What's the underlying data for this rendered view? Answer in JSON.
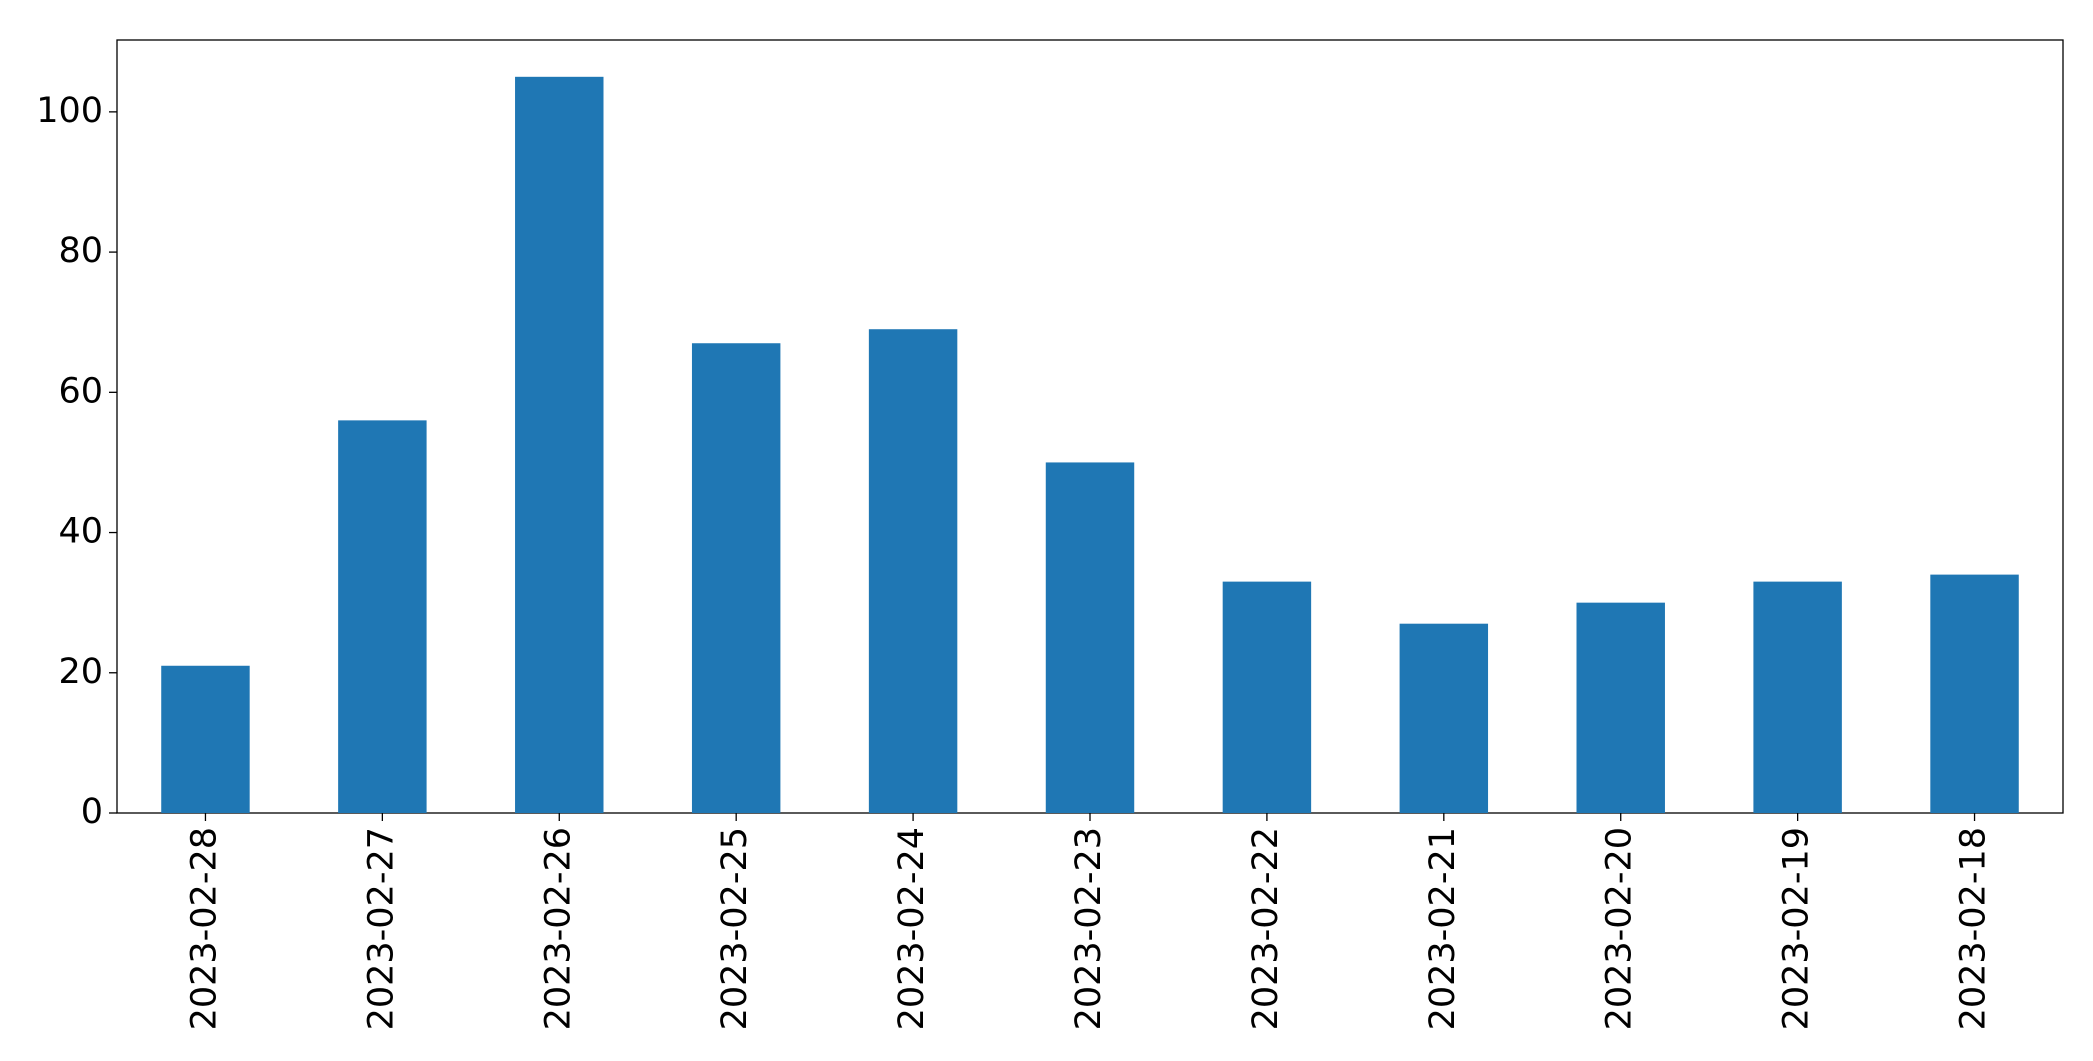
{
  "chart_data": {
    "type": "bar",
    "categories": [
      "2023-02-28",
      "2023-02-27",
      "2023-02-26",
      "2023-02-25",
      "2023-02-24",
      "2023-02-23",
      "2023-02-22",
      "2023-02-21",
      "2023-02-20",
      "2023-02-19",
      "2023-02-18"
    ],
    "values": [
      21,
      56,
      105,
      67,
      69,
      50,
      33,
      27,
      30,
      33,
      34
    ],
    "color": "#1f77b4",
    "ylim": [
      0,
      110.25
    ],
    "yticks": [
      0,
      20,
      40,
      60,
      80,
      100
    ],
    "grid": false
  }
}
